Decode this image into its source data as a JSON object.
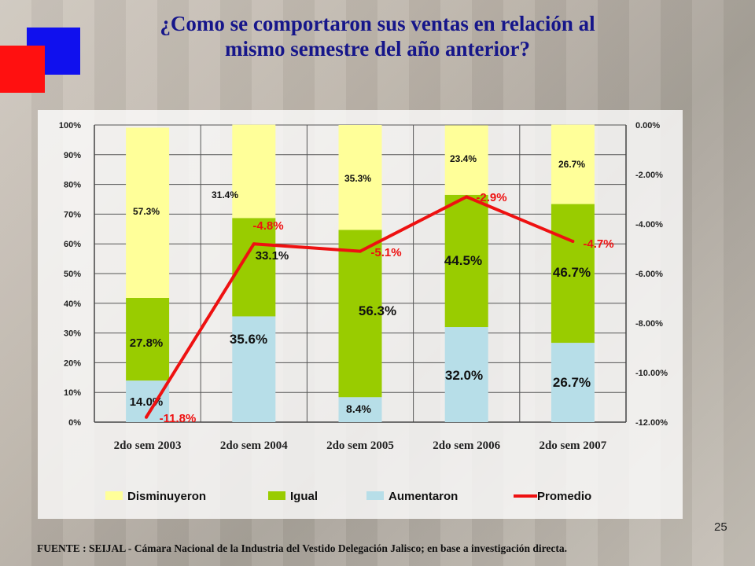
{
  "title_line1": "¿Como se comportaron sus ventas en relación al",
  "title_line2": "mismo semestre del año anterior?",
  "slide_number": "25",
  "source": "FUENTE :  SEIJAL - Cámara Nacional de la Industria del Vestido Delegación Jalisco;  en base a investigación directa.",
  "colors": {
    "disminuyeron": "#ffff99",
    "igual": "#99cc00",
    "aumentaron": "#b7dee8",
    "promedio": "#ee1111",
    "blue_square": "#1010ee",
    "red_square": "#ff1010"
  },
  "chart_data": {
    "type": "bar",
    "stacked": true,
    "categories": [
      "2do sem 2003",
      "2do sem 2004",
      "2do sem 2005",
      "2do sem 2006",
      "2do sem 2007"
    ],
    "series": [
      {
        "name": "Aumentaron",
        "values": [
          14.0,
          35.6,
          8.4,
          32.0,
          26.7
        ],
        "labels": [
          "14.0%",
          "35.6%",
          "8.4%",
          "32.0%",
          "26.7%"
        ]
      },
      {
        "name": "Igual",
        "values": [
          27.8,
          33.1,
          56.3,
          44.5,
          46.7
        ],
        "labels": [
          "27.8%",
          "33.1%",
          "56.3%",
          "44.5%",
          "46.7%"
        ]
      },
      {
        "name": "Disminuyeron",
        "values": [
          57.3,
          31.4,
          35.3,
          23.4,
          26.7
        ],
        "labels": [
          "57.3%",
          "31.4%",
          "35.3%",
          "23.4%",
          "26.7%"
        ]
      }
    ],
    "line_series": {
      "name": "Promedio",
      "values": [
        -11.8,
        -4.8,
        -5.1,
        -2.9,
        -4.7
      ],
      "labels": [
        "-11.8%",
        "-4.8%",
        "-5.1%",
        "-2.9%",
        "-4.7%"
      ],
      "axis": "right"
    },
    "ylim": [
      0,
      100
    ],
    "y_ticks": [
      "0%",
      "10%",
      "20%",
      "30%",
      "40%",
      "50%",
      "60%",
      "70%",
      "80%",
      "90%",
      "100%"
    ],
    "y2lim": [
      -12,
      0
    ],
    "y2_ticks": [
      "-12.00%",
      "-10.00%",
      "-8.00%",
      "-6.00%",
      "-4.00%",
      "-2.00%",
      "0.00%"
    ],
    "legend": [
      "Disminuyeron",
      "Igual",
      "Aumentaron",
      "Promedio"
    ],
    "legend_position": "bottom",
    "grid": true
  }
}
